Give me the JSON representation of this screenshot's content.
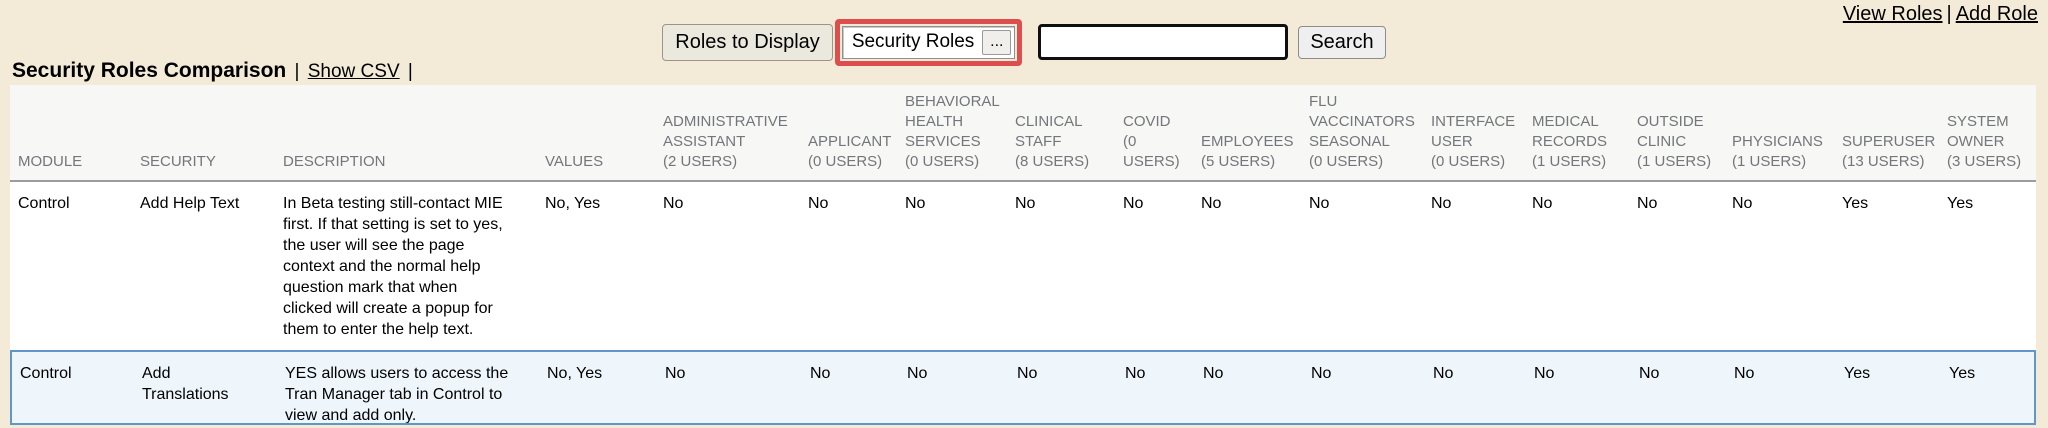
{
  "top_links": {
    "view_roles": "View Roles",
    "separator": "|",
    "add_role": "Add Role"
  },
  "toolbar": {
    "roles_to_display_label": "Roles to Display",
    "roles_select_value": "Security Roles",
    "ellipsis_label": "...",
    "search_value": "",
    "search_button_label": "Search"
  },
  "title": {
    "text": "Security Roles Comparison",
    "separator": "|",
    "show_csv": "Show CSV"
  },
  "colors": {
    "page_background": "#f3ebd8",
    "highlight_box_red": "#dd4f4f",
    "selected_row_border": "#5f97c8",
    "selected_row_background": "#eef6fc",
    "header_background": "#f7f7f6",
    "header_text": "#73767a"
  },
  "table": {
    "columns": [
      {
        "label": "MODULE"
      },
      {
        "label": "SECURITY"
      },
      {
        "label": "DESCRIPTION"
      },
      {
        "label": "VALUES"
      },
      {
        "label": "ADMINISTRATIVE\nASSISTANT\n(2 USERS)"
      },
      {
        "label": "APPLICANT\n(0 USERS)"
      },
      {
        "label": "BEHAVIORAL\nHEALTH\nSERVICES\n(0 USERS)"
      },
      {
        "label": "CLINICAL\nSTAFF\n(8 USERS)"
      },
      {
        "label": "COVID\n(0\nUSERS)"
      },
      {
        "label": "EMPLOYEES\n(5 USERS)"
      },
      {
        "label": "FLU\nVACCINATORS\nSEASONAL\n(0 USERS)"
      },
      {
        "label": "INTERFACE\nUSER\n(0 USERS)"
      },
      {
        "label": "MEDICAL\nRECORDS\n(1 USERS)"
      },
      {
        "label": "OUTSIDE\nCLINIC\n(1 USERS)"
      },
      {
        "label": "PHYSICIANS\n(1 USERS)"
      },
      {
        "label": "SUPERUSER\n(13 USERS)"
      },
      {
        "label": "SYSTEM\nOWNER\n(3 USERS)"
      }
    ],
    "rows": [
      {
        "highlighted": false,
        "cells": [
          "Control",
          "Add Help Text",
          "In Beta testing still-contact MIE\nfirst. If that setting is set to yes,\nthe user will see the page\ncontext and the normal help\nquestion mark that when\nclicked will create a popup for\nthem to enter the help text.",
          "No, Yes",
          "No",
          "No",
          "No",
          "No",
          "No",
          "No",
          "No",
          "No",
          "No",
          "No",
          "No",
          "Yes",
          "Yes"
        ]
      },
      {
        "highlighted": true,
        "cells": [
          "Control",
          "Add\nTranslations",
          "YES allows users to access the\nTran Manager tab in Control to\nview and add only.",
          "No, Yes",
          "No",
          "No",
          "No",
          "No",
          "No",
          "No",
          "No",
          "No",
          "No",
          "No",
          "No",
          "Yes",
          "Yes"
        ]
      }
    ]
  }
}
